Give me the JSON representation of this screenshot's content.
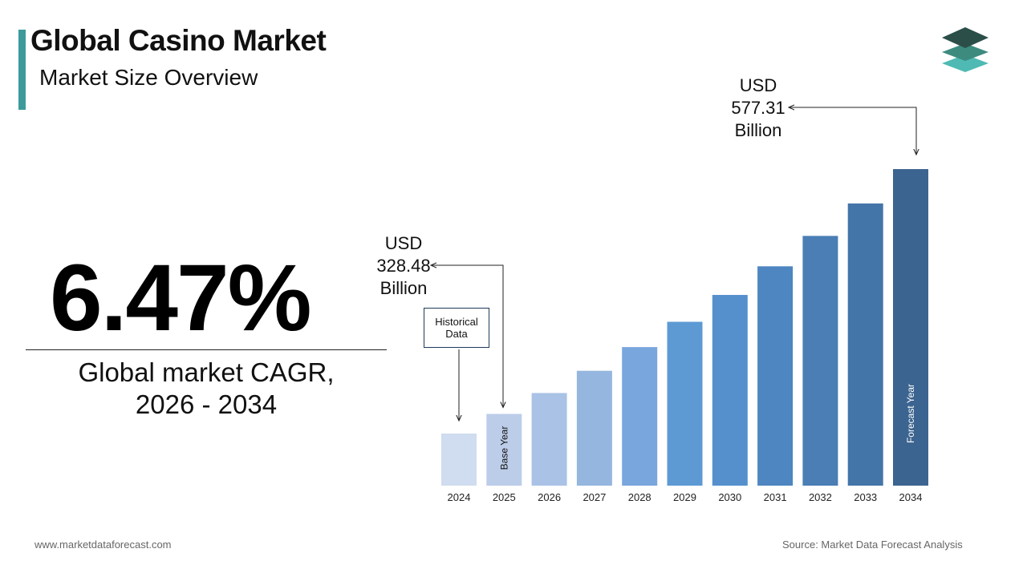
{
  "header": {
    "title": "Global Casino Market",
    "subtitle": "Market Size Overview"
  },
  "logo": {
    "icon": "stacked-layers-logo-icon"
  },
  "highlight": {
    "cagr_value": "6.47%",
    "cagr_label_line1": "Global market CAGR,",
    "cagr_label_line2": "2026 - 2034"
  },
  "chart_data": {
    "type": "bar",
    "categories": [
      "2024",
      "2025",
      "2026",
      "2027",
      "2028",
      "2029",
      "2030",
      "2031",
      "2032",
      "2033",
      "2034"
    ],
    "values": [
      308.5,
      328.48,
      349.7,
      372.3,
      396.4,
      422.1,
      449.4,
      478.5,
      509.4,
      542.4,
      577.31
    ],
    "colors": [
      "#d0dcef",
      "#bccde9",
      "#a9c2e6",
      "#95b6df",
      "#79a6dd",
      "#5d9ad4",
      "#5590cd",
      "#4d86c0",
      "#4a7eb5",
      "#4475a8",
      "#3c6490"
    ],
    "annotations": [
      {
        "category": "2025",
        "lines": [
          "USD",
          "328.48",
          "Billion"
        ]
      },
      {
        "category": "2034",
        "lines": [
          "USD",
          "577.31",
          "Billion"
        ]
      }
    ],
    "bar_labels": [
      {
        "category": "2025",
        "text": "Base Year"
      },
      {
        "category": "2034",
        "text": "Forecast Year"
      }
    ],
    "callout_box": {
      "category": "2024",
      "lines": [
        "Historical",
        "Data"
      ]
    },
    "xlabel": "",
    "ylabel": "",
    "grid": false
  },
  "footer": {
    "website": "www.marketdataforecast.com",
    "source": "Source: Market Data Forecast Analysis"
  }
}
